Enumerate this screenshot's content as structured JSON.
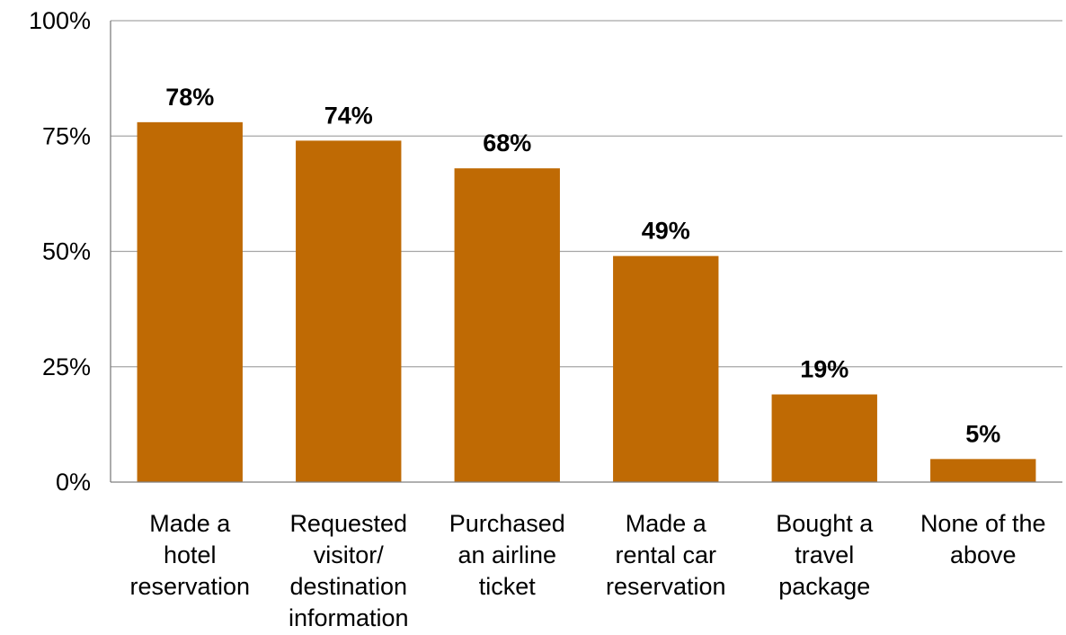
{
  "chart_data": {
    "type": "bar",
    "categories": [
      [
        "Made a",
        "hotel",
        "reservation"
      ],
      [
        "Requested",
        "visitor/",
        "destination",
        "information"
      ],
      [
        "Purchased",
        "an airline",
        "ticket"
      ],
      [
        "Made a",
        "rental car",
        "reservation"
      ],
      [
        "Bought a",
        "travel",
        "package"
      ],
      [
        "None of the",
        "above"
      ]
    ],
    "values": [
      78,
      74,
      68,
      49,
      19,
      5
    ],
    "data_labels": [
      "78%",
      "74%",
      "68%",
      "49%",
      "19%",
      "5%"
    ],
    "yticks": [
      0,
      25,
      50,
      75,
      100
    ],
    "ytick_labels": [
      "0%",
      "25%",
      "50%",
      "75%",
      "100%"
    ],
    "ylim": [
      0,
      100
    ],
    "title": "",
    "xlabel": "",
    "ylabel": "",
    "grid": true,
    "legend": "none",
    "bar_color": "#bf6a04",
    "grid_color": "#a6a6a6"
  }
}
